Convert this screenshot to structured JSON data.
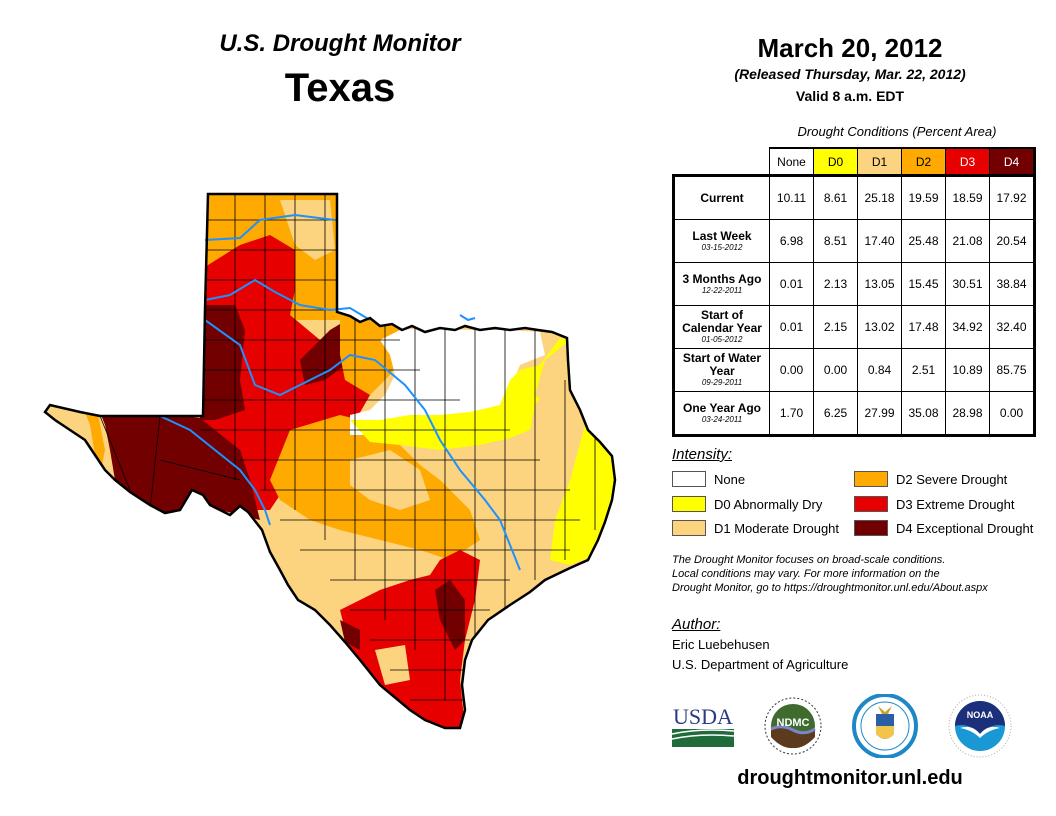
{
  "header": {
    "subtitle": "U.S. Drought Monitor",
    "state": "Texas",
    "date": "March 20, 2012",
    "released": "(Released Thursday, Mar. 22, 2012)",
    "valid": "Valid 8 a.m. EDT"
  },
  "table": {
    "caption": "Drought Conditions (Percent Area)",
    "columns": [
      {
        "label": "None",
        "color": "#ffffff",
        "text_color": "#000000"
      },
      {
        "label": "D0",
        "color": "#ffff00",
        "text_color": "#000000"
      },
      {
        "label": "D1",
        "color": "#fcd37f",
        "text_color": "#000000"
      },
      {
        "label": "D2",
        "color": "#ffaa00",
        "text_color": "#000000"
      },
      {
        "label": "D3",
        "color": "#e60000",
        "text_color": "#ffffff"
      },
      {
        "label": "D4",
        "color": "#730000",
        "text_color": "#ffffff"
      }
    ],
    "rows": [
      {
        "label": "Current",
        "date": "",
        "values": [
          "10.11",
          "8.61",
          "25.18",
          "19.59",
          "18.59",
          "17.92"
        ]
      },
      {
        "label": "Last Week",
        "date": "03-15-2012",
        "values": [
          "6.98",
          "8.51",
          "17.40",
          "25.48",
          "21.08",
          "20.54"
        ]
      },
      {
        "label": "3 Months Ago",
        "date": "12-22-2011",
        "values": [
          "0.01",
          "2.13",
          "13.05",
          "15.45",
          "30.51",
          "38.84"
        ]
      },
      {
        "label": "Start of Calendar Year",
        "date": "01-05-2012",
        "values": [
          "0.01",
          "2.15",
          "13.02",
          "17.48",
          "34.92",
          "32.40"
        ]
      },
      {
        "label": "Start of Water Year",
        "date": "09-29-2011",
        "values": [
          "0.00",
          "0.00",
          "0.84",
          "2.51",
          "10.89",
          "85.75"
        ]
      },
      {
        "label": "One Year Ago",
        "date": "03-24-2011",
        "values": [
          "1.70",
          "6.25",
          "27.99",
          "35.08",
          "28.98",
          "0.00"
        ]
      }
    ]
  },
  "legend": {
    "title": "Intensity:",
    "items": [
      {
        "label": "None",
        "color": "#ffffff"
      },
      {
        "label": "D0 Abnormally Dry",
        "color": "#ffff00"
      },
      {
        "label": "D1 Moderate Drought",
        "color": "#fcd37f"
      },
      {
        "label": "D2 Severe Drought",
        "color": "#ffaa00"
      },
      {
        "label": "D3 Extreme Drought",
        "color": "#e60000"
      },
      {
        "label": "D4 Exceptional Drought",
        "color": "#730000"
      }
    ]
  },
  "note": {
    "line1": "The Drought Monitor focuses on broad-scale conditions.",
    "line2": "Local conditions may vary. For more information on the",
    "line3": "Drought Monitor, go to https://droughtmonitor.unl.edu/About.aspx"
  },
  "author": {
    "title": "Author:",
    "name": "Eric Luebehusen",
    "organization": "U.S. Department of Agriculture"
  },
  "logos": {
    "usda": "USDA",
    "ndmc": "NDMC",
    "noaa": "NOAA"
  },
  "site": "droughtmonitor.unl.edu",
  "map": {
    "region": "Texas",
    "river_color": "#1e90ff"
  }
}
